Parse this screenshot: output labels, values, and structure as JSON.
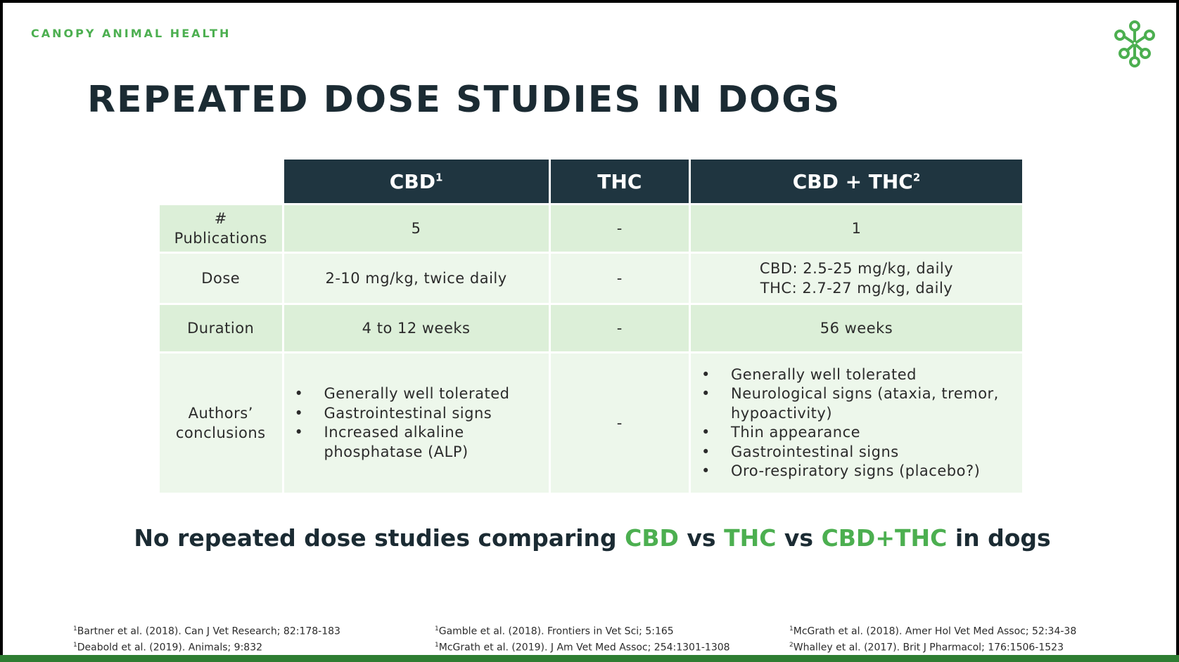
{
  "brand": "CANOPY ANIMAL HEALTH",
  "logo_icon": "canopy-leaf-flower-logo",
  "title": "REPEATED DOSE STUDIES IN DOGS",
  "colors": {
    "header_bg": "#1f3540",
    "row_dark": "#dcefd8",
    "row_light": "#edf7eb",
    "accent_green": "#4caf50",
    "title_text": "#1b2b33"
  },
  "table": {
    "headers": {
      "cbd": "CBD",
      "cbd_sup": "1",
      "thc": "THC",
      "combo": "CBD + THC",
      "combo_sup": "2"
    },
    "rows": {
      "publications": {
        "label_line1": "#",
        "label_line2": "Publications",
        "cbd": "5",
        "thc": "-",
        "combo": "1"
      },
      "dose": {
        "label": "Dose",
        "cbd": "2-10 mg/kg, twice daily",
        "thc": "-",
        "combo_line1": "CBD: 2.5-25 mg/kg, daily",
        "combo_line2": "THC: 2.7-27 mg/kg, daily"
      },
      "duration": {
        "label": "Duration",
        "cbd": "4 to 12 weeks",
        "thc": "-",
        "combo": "56 weeks"
      },
      "conclusions": {
        "label_line1": "Authors’",
        "label_line2": "conclusions",
        "cbd": [
          "Generally well tolerated",
          "Gastrointestinal signs",
          "Increased alkaline phosphatase (ALP)"
        ],
        "thc": "-",
        "combo": [
          "Generally well tolerated",
          "Neurological signs (ataxia, tremor, hypoactivity)",
          "Thin appearance",
          "Gastrointestinal signs",
          "Oro-respiratory signs (placebo?)"
        ]
      }
    }
  },
  "tagline": {
    "part1": "No repeated dose studies comparing ",
    "cbd": "CBD",
    "vs1": " vs ",
    "thc": "THC",
    "vs2": " vs ",
    "combo": "CBD+THC",
    "part2": " in dogs"
  },
  "references": {
    "col1": [
      {
        "sup": "1",
        "text": "Bartner et al. (2018). Can J Vet Research; 82:178-183"
      },
      {
        "sup": "1",
        "text": "Deabold et al. (2019). Animals; 9:832"
      }
    ],
    "col2": [
      {
        "sup": "1",
        "text": "Gamble et al. (2018). Frontiers in Vet Sci; 5:165"
      },
      {
        "sup": "1",
        "text": "McGrath et al. (2019). J Am Vet Med Assoc; 254:1301-1308"
      }
    ],
    "col3": [
      {
        "sup": "1",
        "text": "McGrath et al. (2018). Amer Hol Vet Med Assoc; 52:34-38"
      },
      {
        "sup": "2",
        "text": "Whalley et al. (2017). Brit J Pharmacol; 176:1506-1523"
      }
    ]
  }
}
